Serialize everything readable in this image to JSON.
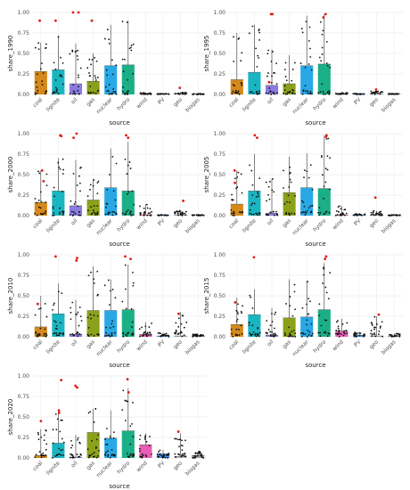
{
  "chart_data": {
    "type": "bar",
    "x_label": "source",
    "y_ticks": [
      "0.00",
      "0.25",
      "0.50",
      "0.75",
      "1.00"
    ],
    "ylim": [
      0,
      1.0
    ],
    "grid": true,
    "legend": "none",
    "categories": [
      "coal",
      "lignite",
      "oil",
      "gas",
      "nuclear",
      "hydro",
      "wind",
      "PV",
      "geo",
      "biogas"
    ],
    "colors": [
      "#D4891A",
      "#19B6C2",
      "#8B7BE0",
      "#8CA11A",
      "#28A9E6",
      "#1BAF87",
      "#E95DB5",
      "#3C8BE8",
      "#B5B5B5",
      "#9E9E9E"
    ],
    "panels": [
      {
        "ylabel": "share_1990",
        "means": [
          0.28,
          0.3,
          0.13,
          0.16,
          0.35,
          0.36,
          0.01,
          0.0,
          0.01,
          0.0
        ],
        "whisker_hi": [
          0.63,
          0.72,
          0.62,
          0.5,
          0.85,
          0.9,
          0.02,
          0.01,
          0.03,
          0.01
        ],
        "outliers": [
          [
            0.9
          ],
          [
            0.9
          ],
          [
            1.0,
            1.0
          ],
          [
            0.9
          ],
          [],
          [],
          [],
          [],
          [
            0.08
          ],
          []
        ]
      },
      {
        "ylabel": "share_1995",
        "means": [
          0.18,
          0.27,
          0.11,
          0.13,
          0.35,
          0.37,
          0.01,
          0.0,
          0.01,
          0.0
        ],
        "whisker_hi": [
          0.75,
          0.85,
          0.55,
          0.48,
          0.96,
          0.98,
          0.02,
          0.01,
          0.04,
          0.01
        ],
        "outliers": [
          [],
          [],
          [
            0.98,
            0.98,
            0.15
          ],
          [],
          [],
          [
            0.98,
            0.94
          ],
          [],
          [],
          [
            0.06
          ],
          []
        ]
      },
      {
        "ylabel": "share_2000",
        "means": [
          0.16,
          0.3,
          0.12,
          0.19,
          0.34,
          0.3,
          0.01,
          0.0,
          0.01,
          0.0
        ],
        "whisker_hi": [
          0.55,
          0.7,
          0.68,
          0.45,
          0.82,
          0.9,
          0.14,
          0.01,
          0.06,
          0.01
        ],
        "outliers": [
          [
            0.55,
            0.42
          ],
          [
            0.98,
            0.97
          ],
          [
            1.0,
            0.95
          ],
          [],
          [],
          [
            0.98,
            0.95
          ],
          [],
          [],
          [
            0.18
          ],
          []
        ]
      },
      {
        "ylabel": "share_2005",
        "means": [
          0.14,
          0.3,
          0.03,
          0.28,
          0.34,
          0.33,
          0.01,
          0.0,
          0.01,
          0.0
        ],
        "whisker_hi": [
          0.55,
          0.75,
          0.45,
          0.72,
          0.76,
          0.98,
          0.12,
          0.02,
          0.06,
          0.01
        ],
        "outliers": [
          [
            0.55,
            0.4
          ],
          [
            0.98,
            0.95
          ],
          [],
          [],
          [],
          [
            0.98,
            0.96
          ],
          [],
          [],
          [
            0.22
          ],
          []
        ]
      },
      {
        "ylabel": "share_2010",
        "means": [
          0.12,
          0.28,
          0.03,
          0.32,
          0.32,
          0.33,
          0.03,
          0.01,
          0.01,
          0.0
        ],
        "whisker_hi": [
          0.5,
          0.65,
          0.45,
          0.86,
          0.7,
          0.88,
          0.18,
          0.05,
          0.3,
          0.03
        ],
        "outliers": [
          [
            0.4
          ],
          [
            0.98
          ],
          [
            0.96,
            0.93
          ],
          [],
          [],
          [
            0.98,
            0.95
          ],
          [],
          [],
          [
            0.28
          ],
          []
        ]
      },
      {
        "ylabel": "share_2015",
        "means": [
          0.15,
          0.27,
          0.02,
          0.23,
          0.24,
          0.33,
          0.07,
          0.02,
          0.01,
          0.01
        ],
        "whisker_hi": [
          0.48,
          0.58,
          0.35,
          0.7,
          0.68,
          0.9,
          0.22,
          0.06,
          0.25,
          0.04
        ],
        "outliers": [
          [
            0.42
          ],
          [
            0.97
          ],
          [],
          [],
          [],
          [
            0.98,
            0.95
          ],
          [],
          [],
          [
            0.27
          ],
          []
        ]
      },
      {
        "ylabel": "share_2020",
        "means": [
          0.03,
          0.18,
          0.01,
          0.31,
          0.24,
          0.33,
          0.16,
          0.05,
          0.02,
          0.03
        ],
        "whisker_hi": [
          0.35,
          0.55,
          0.28,
          0.6,
          0.58,
          0.85,
          0.3,
          0.1,
          0.3,
          0.08
        ],
        "outliers": [
          [
            0.45
          ],
          [
            0.95,
            0.58,
            0.55
          ],
          [
            0.88,
            0.86
          ],
          [],
          [],
          [
            0.96,
            0.8
          ],
          [],
          [],
          [
            0.32
          ],
          []
        ]
      }
    ]
  }
}
